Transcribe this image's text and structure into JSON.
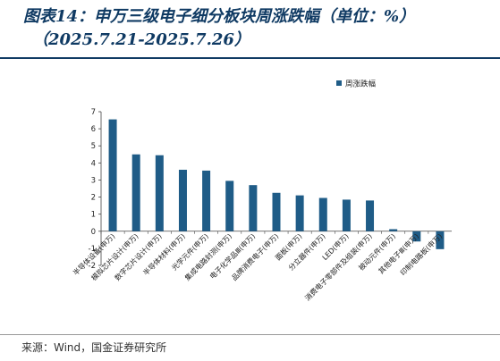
{
  "header": {
    "title_line1": "图表14：申万三级电子细分板块周涨跌幅（单位：%）",
    "title_line2": "（2025.7.21-2025.7.26）"
  },
  "footer": {
    "source": "来源：Wind，国金证券研究所"
  },
  "colors": {
    "bar": "#1f5c87",
    "title": "#0f3a63"
  },
  "chart_data": {
    "type": "bar",
    "title": "",
    "xlabel": "",
    "ylabel": "",
    "ylim": [
      -2,
      7
    ],
    "yticks": [
      -2,
      -1,
      0,
      1,
      2,
      3,
      4,
      5,
      6,
      7
    ],
    "grid": false,
    "legend_position": "top-right",
    "categories": [
      "半导体设备(申万)",
      "模拟芯片设计(申万)",
      "数字芯片设计(申万)",
      "半导体材料(申万)",
      "光学元件(申万)",
      "集成电路封测(申万)",
      "电子化学品Ⅲ(申万)",
      "品牌消费电子(申万)",
      "面板(申万)",
      "分立器件(申万)",
      "LED(申万)",
      "消费电子零部件及组装(申万)",
      "被动元件(申万)",
      "其他电子Ⅲ(申万)",
      "印制电路板(申万)"
    ],
    "series": [
      {
        "name": "周涨跌幅",
        "values": [
          6.55,
          4.5,
          4.45,
          3.6,
          3.55,
          2.95,
          2.7,
          2.25,
          2.1,
          1.95,
          1.85,
          1.8,
          0.12,
          -0.6,
          -1.05
        ]
      }
    ]
  }
}
